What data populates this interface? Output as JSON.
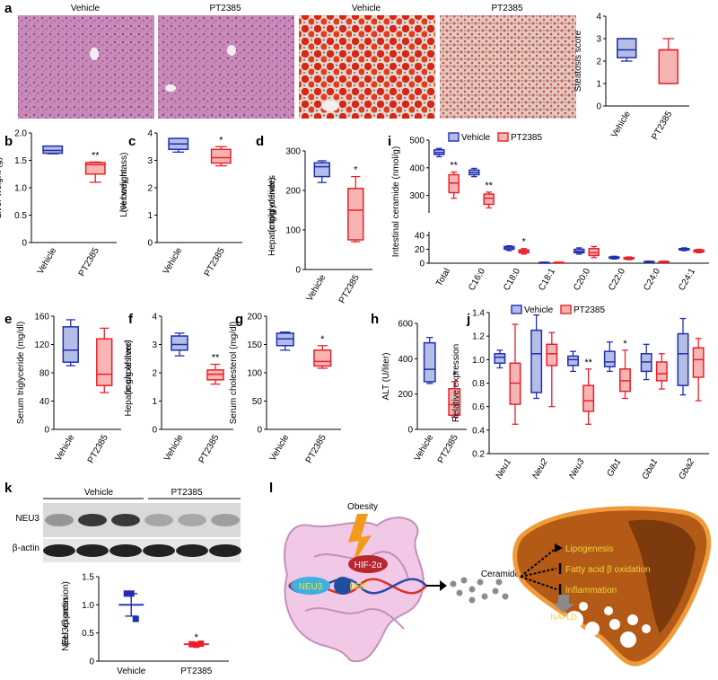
{
  "colors": {
    "vehicle": "#1f2fb0",
    "vehicle_fill": "#b4bde6",
    "pt": "#e8202a",
    "pt_fill": "#f6b5b3"
  },
  "panel_a": {
    "letter": "a",
    "image_labels": [
      "Vehicle",
      "PT2385",
      "Vehicle",
      "PT2385"
    ],
    "stain_types": [
      "he",
      "he",
      "oilred-vehicle",
      "oilred-pt"
    ]
  },
  "panel_k": {
    "letter": "k",
    "group_labels": [
      "Vehicle",
      "PT2385"
    ],
    "blot_labels": [
      "NEU3",
      "β-actin"
    ],
    "neu3_band_intensity": [
      0.3,
      0.85,
      0.85,
      0.2,
      0.18,
      0.25
    ]
  },
  "panel_l": {
    "letter": "l",
    "obesity": "Obesity",
    "hif": "HIF-2α",
    "neu3": "NEU3",
    "hre": "HRE",
    "ceramides": "Ceramides",
    "liver_labels": [
      "Lipogenesis",
      "Fatty acid β oxidation",
      "Inflammation",
      "NAFLD"
    ]
  },
  "chart_data": [
    {
      "id": "a_score",
      "type": "box",
      "letter": "",
      "ylabel": "Steatosis score",
      "ylim": [
        0,
        4
      ],
      "yticks": [
        "0",
        "1",
        "2",
        "3",
        "4"
      ],
      "categories": [
        "Vehicle",
        "PT2385"
      ],
      "boxes": [
        {
          "min": 2,
          "q1": 2.15,
          "median": 2.5,
          "q3": 3,
          "max": 3
        },
        {
          "min": 1,
          "q1": 1,
          "median": 2.5,
          "q3": 2.5,
          "max": 3
        }
      ],
      "stars": [
        "",
        ""
      ]
    },
    {
      "id": "b",
      "type": "box",
      "letter": "b",
      "ylabel": "Liver weight (g)",
      "ylim": [
        0,
        2
      ],
      "yticks": [
        "0",
        "0.5",
        "1.0",
        "1.5",
        "2.0"
      ],
      "categories": [
        "Vehicle",
        "PT2385"
      ],
      "boxes": [
        {
          "min": 1.62,
          "q1": 1.63,
          "median": 1.68,
          "q3": 1.76,
          "max": 1.76
        },
        {
          "min": 1.1,
          "q1": 1.25,
          "median": 1.42,
          "q3": 1.46,
          "max": 1.47
        }
      ],
      "stars": [
        "",
        "**"
      ]
    },
    {
      "id": "c",
      "type": "box",
      "letter": "c",
      "ylabel": "Liver weight (% body mass)",
      "ylim": [
        0,
        4
      ],
      "yticks": [
        "0",
        "1",
        "2",
        "3",
        "4"
      ],
      "categories": [
        "Vehicle",
        "PT2385"
      ],
      "boxes": [
        {
          "min": 3.3,
          "q1": 3.4,
          "median": 3.6,
          "q3": 3.8,
          "max": 3.8
        },
        {
          "min": 2.8,
          "q1": 2.9,
          "median": 3.1,
          "q3": 3.4,
          "max": 3.5
        }
      ],
      "stars": [
        "",
        "*"
      ]
    },
    {
      "id": "d",
      "type": "box",
      "letter": "d",
      "ylabel": "Hepatic triglycerides (mg/g of liver)",
      "ylim": [
        0,
        300
      ],
      "yticks": [
        "0",
        "100",
        "200",
        "300"
      ],
      "categories": [
        "Vehicle",
        "PT2385"
      ],
      "boxes": [
        {
          "min": 220,
          "q1": 235,
          "median": 260,
          "q3": 270,
          "max": 275
        },
        {
          "min": 70,
          "q1": 75,
          "median": 150,
          "q3": 205,
          "max": 235
        }
      ],
      "stars": [
        "",
        "*"
      ]
    },
    {
      "id": "e",
      "type": "box",
      "letter": "e",
      "ylabel": "Serum triglyceride (mg/dl)",
      "ylim": [
        0,
        160
      ],
      "yticks": [
        "0",
        "40",
        "80",
        "120",
        "160"
      ],
      "categories": [
        "Vehicle",
        "PT2385"
      ],
      "boxes": [
        {
          "min": 90,
          "q1": 95,
          "median": 112,
          "q3": 145,
          "max": 155
        },
        {
          "min": 52,
          "q1": 62,
          "median": 78,
          "q3": 128,
          "max": 143
        }
      ],
      "stars": [
        "",
        ""
      ]
    },
    {
      "id": "f",
      "type": "box",
      "letter": "f",
      "ylabel": "Hepatic cholesterol (mg/g of liver)",
      "ylim": [
        0,
        4
      ],
      "yticks": [
        "0",
        "1",
        "2",
        "3",
        "4"
      ],
      "categories": [
        "Vehicle",
        "PT2385"
      ],
      "boxes": [
        {
          "min": 2.6,
          "q1": 2.8,
          "median": 3.0,
          "q3": 3.3,
          "max": 3.4
        },
        {
          "min": 1.6,
          "q1": 1.75,
          "median": 1.95,
          "q3": 2.1,
          "max": 2.3
        }
      ],
      "stars": [
        "",
        "**"
      ]
    },
    {
      "id": "g",
      "type": "box",
      "letter": "g",
      "ylabel": "Serum cholesterol (mg/dl)",
      "ylim": [
        0,
        200
      ],
      "yticks": [
        "0",
        "50",
        "100",
        "150",
        "200"
      ],
      "categories": [
        "Vehicle",
        "PT2385"
      ],
      "boxes": [
        {
          "min": 140,
          "q1": 148,
          "median": 160,
          "q3": 170,
          "max": 172
        },
        {
          "min": 108,
          "q1": 112,
          "median": 120,
          "q3": 140,
          "max": 148
        }
      ],
      "stars": [
        "",
        "*"
      ]
    },
    {
      "id": "h",
      "type": "box",
      "letter": "h",
      "ylabel": "ALT (U/liter)",
      "ylim": [
        0,
        600
      ],
      "yticks": [
        "0",
        "200",
        "400",
        "600"
      ],
      "categories": [
        "Vehicle",
        "PT2385"
      ],
      "boxes": [
        {
          "min": 260,
          "q1": 270,
          "median": 340,
          "q3": 490,
          "max": 520
        },
        {
          "min": 70,
          "q1": 80,
          "median": 140,
          "q3": 230,
          "max": 270
        }
      ],
      "stars": [
        "",
        "*"
      ]
    },
    {
      "id": "i",
      "type": "box",
      "letter": "i",
      "ylabel": "Intestinal ceramide (nmol/g)",
      "ylim": [
        0,
        500
      ],
      "y_break": {
        "lower": [
          0,
          40
        ],
        "upper": [
          250,
          500
        ]
      },
      "yticks": [
        "0",
        "20",
        "40",
        "300",
        "400",
        "500"
      ],
      "legend": [
        "Vehicle",
        "PT2385"
      ],
      "categories": [
        "Total",
        "C16:0",
        "C18:0",
        "C18:1",
        "C20:0",
        "C22:0",
        "C24:0",
        "C24:1"
      ],
      "vehicle": [
        {
          "min": 440,
          "q1": 448,
          "median": 455,
          "q3": 465,
          "max": 470
        },
        {
          "min": 368,
          "q1": 375,
          "median": 383,
          "q3": 392,
          "max": 398
        },
        {
          "min": 18,
          "q1": 20,
          "median": 22,
          "q3": 24,
          "max": 25
        },
        {
          "min": 0.5,
          "q1": 0.8,
          "median": 1,
          "q3": 1.2,
          "max": 1.5
        },
        {
          "min": 13,
          "q1": 15,
          "median": 17,
          "q3": 20,
          "max": 22
        },
        {
          "min": 6,
          "q1": 7,
          "median": 8,
          "q3": 9,
          "max": 10
        },
        {
          "min": 1,
          "q1": 1.5,
          "median": 2,
          "q3": 2.5,
          "max": 3
        },
        {
          "min": 18,
          "q1": 19,
          "median": 20,
          "q3": 21,
          "max": 22
        }
      ],
      "pt": [
        {
          "min": 290,
          "q1": 310,
          "median": 345,
          "q3": 375,
          "max": 385
        },
        {
          "min": 255,
          "q1": 268,
          "median": 290,
          "q3": 305,
          "max": 312
        },
        {
          "min": 13,
          "q1": 15,
          "median": 17,
          "q3": 19,
          "max": 21
        },
        {
          "min": 0.5,
          "q1": 0.8,
          "median": 1,
          "q3": 1.2,
          "max": 1.5
        },
        {
          "min": 8,
          "q1": 11,
          "median": 15,
          "q3": 21,
          "max": 24
        },
        {
          "min": 5,
          "q1": 6,
          "median": 7,
          "q3": 8,
          "max": 9
        },
        {
          "min": 1,
          "q1": 1.5,
          "median": 2,
          "q3": 2.5,
          "max": 3
        },
        {
          "min": 15,
          "q1": 16,
          "median": 17,
          "q3": 19,
          "max": 20
        }
      ],
      "stars": [
        "**",
        "**",
        "*",
        "",
        "",
        "",
        "",
        ""
      ]
    },
    {
      "id": "j",
      "type": "box",
      "letter": "j",
      "ylabel": "Relative expression",
      "ylim": [
        0.2,
        1.4
      ],
      "yticks": [
        "0.2",
        "0.4",
        "0.6",
        "0.8",
        "1.0",
        "1.2",
        "1.4"
      ],
      "legend": [
        "Vehicle",
        "PT2385"
      ],
      "categories": [
        "Neu1",
        "Neu2",
        "Neu3",
        "Glb1",
        "Gba1",
        "Gba2"
      ],
      "vehicle": [
        {
          "min": 0.93,
          "q1": 0.97,
          "median": 1.02,
          "q3": 1.05,
          "max": 1.08
        },
        {
          "min": 0.67,
          "q1": 0.72,
          "median": 1.05,
          "q3": 1.25,
          "max": 1.38
        },
        {
          "min": 0.9,
          "q1": 0.95,
          "median": 1.0,
          "q3": 1.03,
          "max": 1.07
        },
        {
          "min": 0.9,
          "q1": 0.94,
          "median": 0.98,
          "q3": 1.07,
          "max": 1.15
        },
        {
          "min": 0.83,
          "q1": 0.9,
          "median": 0.98,
          "q3": 1.05,
          "max": 1.13
        },
        {
          "min": 0.7,
          "q1": 0.78,
          "median": 1.05,
          "q3": 1.22,
          "max": 1.35
        }
      ],
      "pt": [
        {
          "min": 0.45,
          "q1": 0.62,
          "median": 0.8,
          "q3": 0.97,
          "max": 1.3
        },
        {
          "min": 0.6,
          "q1": 0.95,
          "median": 1.05,
          "q3": 1.13,
          "max": 1.23
        },
        {
          "min": 0.45,
          "q1": 0.56,
          "median": 0.65,
          "q3": 0.78,
          "max": 0.92
        },
        {
          "min": 0.67,
          "q1": 0.73,
          "median": 0.82,
          "q3": 0.92,
          "max": 1.08
        },
        {
          "min": 0.75,
          "q1": 0.82,
          "median": 0.88,
          "q3": 0.98,
          "max": 1.05
        },
        {
          "min": 0.65,
          "q1": 0.85,
          "median": 1.0,
          "q3": 1.1,
          "max": 1.18
        }
      ],
      "stars": [
        "",
        "",
        "**",
        "*",
        "",
        ""
      ]
    },
    {
      "id": "k_quant",
      "type": "scatter",
      "letter": "",
      "ylabel": "NEU3/β-actin (rel. expression)",
      "ylim": [
        0,
        1.5
      ],
      "yticks": [
        "0",
        "0.5",
        "1.0",
        "1.5"
      ],
      "categories": [
        "Vehicle",
        "PT2385"
      ],
      "points": [
        [
          1.2,
          1.2,
          0.75
        ],
        [
          0.3,
          0.29,
          0.31
        ]
      ],
      "means": [
        1.0,
        0.3
      ],
      "sem": [
        0.2,
        0.02
      ],
      "stars": [
        "",
        "*"
      ]
    }
  ]
}
